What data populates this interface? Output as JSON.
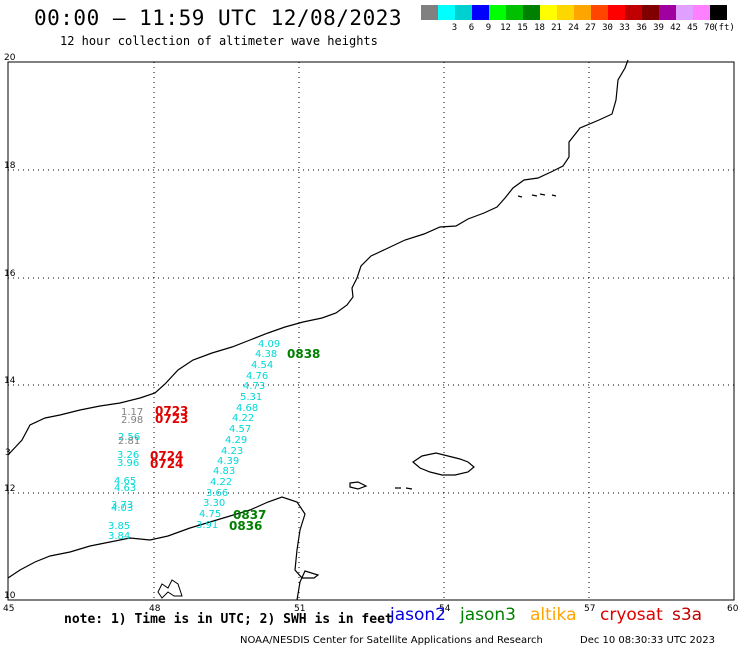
{
  "header": {
    "title": "00:00 — 11:59 UTC 12/08/2023",
    "subtitle": "12 hour collection of altimeter wave heights"
  },
  "scale": {
    "colors": [
      "#808080",
      "#00ffff",
      "#00d0d0",
      "#0000ff",
      "#00ff00",
      "#00c000",
      "#008000",
      "#ffff00",
      "#ffd700",
      "#ffa500",
      "#ff4500",
      "#ff0000",
      "#c00000",
      "#800000",
      "#a000a0",
      "#e0a0ff",
      "#ff80ff",
      "#000000"
    ],
    "labels": [
      "",
      "3",
      "6",
      "9",
      "12",
      "15",
      "18",
      "21",
      "24",
      "27",
      "30",
      "33",
      "36",
      "39",
      "42",
      "45",
      "70"
    ],
    "unit": "(ft)"
  },
  "axes": {
    "x_ticks": [
      "45",
      "48",
      "51",
      "54",
      "57",
      "60"
    ],
    "y_ticks": [
      "20",
      "18",
      "16",
      "14",
      "12",
      "10"
    ],
    "y_tick_mid": "3"
  },
  "tracks": [
    {
      "name": "jason3-0838",
      "color": "#008000",
      "values": [
        "4.09",
        "4.38",
        "4.54",
        "4.76",
        "4.73",
        "5.31",
        "4.68",
        "4.22",
        "4.57",
        "4.29",
        "4.23",
        "4.39",
        "4.83",
        "4.22",
        "3.66",
        "3.30",
        "4.75",
        "3.91"
      ],
      "times": [
        "0838",
        "0837",
        "0836"
      ]
    },
    {
      "name": "cryosat",
      "color": "#e00000",
      "values": [
        "1.17",
        "2.98",
        "2.56",
        "2.81",
        "3.26",
        "3.96",
        "4.65",
        "4.63",
        "3.73",
        "4.03",
        "3.85",
        "3.84"
      ],
      "times": [
        "0723",
        "0723",
        "0724",
        "0724"
      ]
    }
  ],
  "annotations": [
    {
      "text": "4.09",
      "color": "#00d8d8"
    },
    {
      "text": "4.38",
      "color": "#00d8d8"
    },
    {
      "text": "0838",
      "color": "#008000"
    },
    {
      "text": "4.54",
      "color": "#00d8d8"
    },
    {
      "text": "4.76",
      "color": "#00d8d8"
    },
    {
      "text": "4.73",
      "color": "#00d8d8"
    },
    {
      "text": "5.31",
      "color": "#00d8d8"
    },
    {
      "text": "4.68",
      "color": "#00d8d8"
    },
    {
      "text": "4.22",
      "color": "#00d8d8"
    },
    {
      "text": "4.57",
      "color": "#00d8d8"
    },
    {
      "text": "4.29",
      "color": "#00d8d8"
    },
    {
      "text": "4.23",
      "color": "#00d8d8"
    },
    {
      "text": "4.39",
      "color": "#00d8d8"
    },
    {
      "text": "4.83",
      "color": "#00d8d8"
    },
    {
      "text": "4.22",
      "color": "#00d8d8"
    },
    {
      "text": "3.66",
      "color": "#00d8d8"
    },
    {
      "text": "3.30",
      "color": "#00d8d8"
    },
    {
      "text": "4.75",
      "color": "#00d8d8"
    },
    {
      "text": "0837",
      "color": "#008000"
    },
    {
      "text": "3.91",
      "color": "#00d8d8"
    },
    {
      "text": "0836",
      "color": "#008000"
    },
    {
      "text": "1.17",
      "color": "#808080"
    },
    {
      "text": "0723",
      "color": "#e00000"
    },
    {
      "text": "2.98",
      "color": "#808080"
    },
    {
      "text": "0723",
      "color": "#e00000"
    },
    {
      "text": "2.56",
      "color": "#00d8d8"
    },
    {
      "text": "2.81",
      "color": "#808080"
    },
    {
      "text": "3.26",
      "color": "#00d8d8"
    },
    {
      "text": "0724",
      "color": "#e00000"
    },
    {
      "text": "3.96",
      "color": "#00d8d8"
    },
    {
      "text": "0724",
      "color": "#e00000"
    },
    {
      "text": "4.65",
      "color": "#00d8d8"
    },
    {
      "text": "4.63",
      "color": "#00d8d8"
    },
    {
      "text": "3.73",
      "color": "#00d8d8"
    },
    {
      "text": "4.03",
      "color": "#00d8d8"
    },
    {
      "text": "3.85",
      "color": "#00d8d8"
    },
    {
      "text": "3.84",
      "color": "#00d8d8"
    }
  ],
  "footer": {
    "note": "note: 1) Time is in UTC; 2) SWH is in feet",
    "satellites": [
      {
        "name": "jason2",
        "color": "#0000e0"
      },
      {
        "name": "jason3",
        "color": "#008000"
      },
      {
        "name": "altika",
        "color": "#ffa500"
      },
      {
        "name": "cryosat",
        "color": "#e00000"
      },
      {
        "name": "s3a",
        "color": "#c00000"
      }
    ],
    "credit": "NOAA/NESDIS Center for Satellite Applications and Research",
    "timestamp": "Dec 10 08:30:33 UTC 2023"
  }
}
